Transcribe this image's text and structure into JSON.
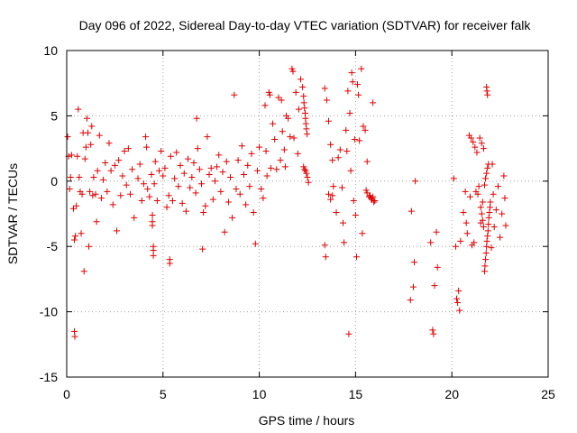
{
  "chart_data": {
    "type": "scatter",
    "title": "Day 096 of 2022, Sidereal Day-to-day VTEC variation (SDTVAR) for receiver falk",
    "xlabel": "GPS time / hours",
    "ylabel": "SDTVAR / TECUs",
    "xlim": [
      0,
      25
    ],
    "ylim": [
      -15,
      10
    ],
    "xticks": [
      0,
      5,
      10,
      15,
      20,
      25
    ],
    "yticks": [
      -15,
      -10,
      -5,
      0,
      5,
      10
    ],
    "grid": true,
    "marker": "plus",
    "color": "#e00000",
    "points": [
      [
        0.05,
        3.4
      ],
      [
        0.1,
        1.9
      ],
      [
        0.15,
        -0.6
      ],
      [
        0.2,
        0.3
      ],
      [
        0.25,
        2.0
      ],
      [
        0.35,
        -2.1
      ],
      [
        0.4,
        -4.5
      ],
      [
        0.45,
        -4.2
      ],
      [
        0.4,
        -11.5
      ],
      [
        0.42,
        -11.9
      ],
      [
        0.5,
        -1.9
      ],
      [
        0.55,
        1.9
      ],
      [
        0.6,
        5.5
      ],
      [
        0.65,
        0.3
      ],
      [
        0.7,
        -0.8
      ],
      [
        0.75,
        -4.0
      ],
      [
        0.8,
        -1.0
      ],
      [
        0.85,
        3.7
      ],
      [
        0.9,
        -6.9
      ],
      [
        0.95,
        1.7
      ],
      [
        1.0,
        2.6
      ],
      [
        1.05,
        4.8
      ],
      [
        1.1,
        3.7
      ],
      [
        1.15,
        -5.0
      ],
      [
        1.2,
        -0.8
      ],
      [
        1.25,
        2.8
      ],
      [
        1.3,
        4.2
      ],
      [
        1.35,
        -1.1
      ],
      [
        1.4,
        0.3
      ],
      [
        1.5,
        -1.0
      ],
      [
        1.55,
        -3.1
      ],
      [
        1.6,
        0.8
      ],
      [
        1.7,
        3.5
      ],
      [
        1.8,
        -1.3
      ],
      [
        1.9,
        0.1
      ],
      [
        2.0,
        1.4
      ],
      [
        2.1,
        -0.8
      ],
      [
        2.2,
        2.9
      ],
      [
        2.3,
        0.8
      ],
      [
        2.4,
        -1.8
      ],
      [
        2.5,
        1.2
      ],
      [
        2.6,
        -3.8
      ],
      [
        2.7,
        1.6
      ],
      [
        2.8,
        -1.1
      ],
      [
        2.9,
        0.4
      ],
      [
        3.0,
        2.3
      ],
      [
        3.1,
        -0.3
      ],
      [
        3.2,
        2.5
      ],
      [
        3.3,
        -1.0
      ],
      [
        3.4,
        0.9
      ],
      [
        3.5,
        -2.8
      ],
      [
        3.7,
        0.2
      ],
      [
        3.8,
        1.3
      ],
      [
        3.9,
        -1.5
      ],
      [
        4.0,
        -0.2
      ],
      [
        4.1,
        3.4
      ],
      [
        4.15,
        2.6
      ],
      [
        4.2,
        -0.6
      ],
      [
        4.3,
        -1.2
      ],
      [
        4.4,
        0.5
      ],
      [
        4.45,
        -2.6
      ],
      [
        4.45,
        -3.1
      ],
      [
        4.45,
        -3.4
      ],
      [
        4.5,
        -5.0
      ],
      [
        4.5,
        -5.3
      ],
      [
        4.5,
        -5.7
      ],
      [
        4.55,
        -0.2
      ],
      [
        4.6,
        1.5
      ],
      [
        4.7,
        -1.5
      ],
      [
        4.8,
        0.8
      ],
      [
        4.9,
        2.3
      ],
      [
        5.0,
        0.4
      ],
      [
        5.1,
        1.0
      ],
      [
        5.2,
        -2.0
      ],
      [
        5.3,
        -1.1
      ],
      [
        5.35,
        -6.0
      ],
      [
        5.35,
        -6.3
      ],
      [
        5.4,
        1.9
      ],
      [
        5.5,
        -1.5
      ],
      [
        5.6,
        0.2
      ],
      [
        5.7,
        2.2
      ],
      [
        5.8,
        -0.4
      ],
      [
        5.9,
        1.2
      ],
      [
        6.0,
        -1.7
      ],
      [
        6.1,
        0.6
      ],
      [
        6.2,
        -2.3
      ],
      [
        6.3,
        1.7
      ],
      [
        6.4,
        -0.5
      ],
      [
        6.5,
        0.3
      ],
      [
        6.6,
        1.4
      ],
      [
        6.7,
        -0.9
      ],
      [
        6.75,
        4.8
      ],
      [
        6.8,
        2.5
      ],
      [
        6.9,
        0.9
      ],
      [
        7.0,
        -0.2
      ],
      [
        7.05,
        -5.2
      ],
      [
        7.1,
        -2.4
      ],
      [
        7.2,
        -1.9
      ],
      [
        7.3,
        3.4
      ],
      [
        7.4,
        0.5
      ],
      [
        7.5,
        1.0
      ],
      [
        7.6,
        -1.4
      ],
      [
        7.7,
        0.0
      ],
      [
        7.8,
        1.1
      ],
      [
        7.9,
        2.0
      ],
      [
        8.0,
        -0.8
      ],
      [
        8.1,
        0.7
      ],
      [
        8.2,
        -3.9
      ],
      [
        8.3,
        1.5
      ],
      [
        8.4,
        -1.6
      ],
      [
        8.5,
        0.3
      ],
      [
        8.6,
        -2.8
      ],
      [
        8.7,
        6.6
      ],
      [
        8.8,
        -0.6
      ],
      [
        8.9,
        1.6
      ],
      [
        9.0,
        -1.0
      ],
      [
        9.1,
        2.7
      ],
      [
        9.2,
        0.5
      ],
      [
        9.3,
        -1.8
      ],
      [
        9.4,
        1.2
      ],
      [
        9.5,
        -0.4
      ],
      [
        9.6,
        2.1
      ],
      [
        9.7,
        -2.4
      ],
      [
        9.8,
        -4.8
      ],
      [
        9.9,
        0.8
      ],
      [
        10.0,
        2.6
      ],
      [
        10.1,
        -0.6
      ],
      [
        10.2,
        -1.3
      ],
      [
        10.3,
        5.8
      ],
      [
        10.35,
        2.3
      ],
      [
        10.4,
        0.4
      ],
      [
        10.5,
        6.8
      ],
      [
        10.55,
        6.6
      ],
      [
        10.6,
        1.0
      ],
      [
        10.7,
        4.4
      ],
      [
        10.8,
        3.2
      ],
      [
        10.9,
        0.9
      ],
      [
        11.0,
        6.4
      ],
      [
        11.1,
        1.6
      ],
      [
        11.15,
        6.2
      ],
      [
        11.2,
        3.8
      ],
      [
        11.3,
        2.4
      ],
      [
        11.35,
        1.1
      ],
      [
        11.4,
        5.0
      ],
      [
        11.5,
        4.8
      ],
      [
        11.6,
        3.4
      ],
      [
        11.7,
        8.6
      ],
      [
        11.75,
        8.4
      ],
      [
        11.8,
        3.3
      ],
      [
        11.9,
        6.8
      ],
      [
        12.0,
        2.1
      ],
      [
        12.05,
        5.5
      ],
      [
        12.15,
        7.8
      ],
      [
        12.25,
        7.2
      ],
      [
        12.3,
        6.5
      ],
      [
        12.32,
        6.0
      ],
      [
        12.35,
        5.6
      ],
      [
        12.38,
        5.2
      ],
      [
        12.4,
        4.8
      ],
      [
        12.42,
        4.4
      ],
      [
        12.45,
        4.0
      ],
      [
        12.48,
        3.6
      ],
      [
        12.3,
        1.1
      ],
      [
        12.35,
        0.9
      ],
      [
        12.4,
        0.8
      ],
      [
        12.45,
        0.6
      ],
      [
        12.5,
        0.3
      ],
      [
        12.55,
        -0.1
      ],
      [
        13.4,
        7.1
      ],
      [
        13.5,
        6.2
      ],
      [
        13.6,
        4.6
      ],
      [
        13.7,
        2.8
      ],
      [
        13.8,
        1.6
      ],
      [
        13.85,
        -0.4
      ],
      [
        13.4,
        -4.9
      ],
      [
        13.45,
        -5.8
      ],
      [
        13.6,
        -1.0
      ],
      [
        13.7,
        -1.4
      ],
      [
        13.8,
        -1.1
      ],
      [
        14.0,
        -2.4
      ],
      [
        14.1,
        1.8
      ],
      [
        14.2,
        2.4
      ],
      [
        14.3,
        -0.5
      ],
      [
        14.35,
        -3.2
      ],
      [
        14.4,
        -4.7
      ],
      [
        14.5,
        3.9
      ],
      [
        14.55,
        2.3
      ],
      [
        14.6,
        6.9
      ],
      [
        14.7,
        5.2
      ],
      [
        14.75,
        0.8
      ],
      [
        14.8,
        8.3
      ],
      [
        14.85,
        7.6
      ],
      [
        14.9,
        -1.5
      ],
      [
        14.95,
        3.2
      ],
      [
        15.0,
        -2.6
      ],
      [
        15.05,
        -5.8
      ],
      [
        15.1,
        7.4
      ],
      [
        15.15,
        6.6
      ],
      [
        15.2,
        3.1
      ],
      [
        15.3,
        8.6
      ],
      [
        15.35,
        -4.0
      ],
      [
        15.4,
        4.2
      ],
      [
        15.5,
        3.9
      ],
      [
        15.6,
        1.5
      ],
      [
        14.65,
        -11.7
      ],
      [
        15.7,
        -1.2
      ],
      [
        15.75,
        -1.1
      ],
      [
        15.8,
        -1.3
      ],
      [
        15.85,
        -1.4
      ],
      [
        15.9,
        -1.2
      ],
      [
        15.95,
        -1.6
      ],
      [
        16.0,
        -1.5
      ],
      [
        15.55,
        -0.7
      ],
      [
        15.6,
        -0.9
      ],
      [
        15.9,
        6.0
      ],
      [
        17.85,
        -9.1
      ],
      [
        17.9,
        -2.3
      ],
      [
        18.1,
        0.0
      ],
      [
        18.05,
        -6.2
      ],
      [
        18.0,
        -8.1
      ],
      [
        18.9,
        -4.7
      ],
      [
        19.0,
        -11.4
      ],
      [
        19.05,
        -11.7
      ],
      [
        19.1,
        -8.0
      ],
      [
        19.2,
        -3.9
      ],
      [
        19.25,
        -6.6
      ],
      [
        20.1,
        0.2
      ],
      [
        20.2,
        -5.0
      ],
      [
        20.25,
        -9.0
      ],
      [
        20.3,
        -9.3
      ],
      [
        20.35,
        -8.4
      ],
      [
        20.4,
        -9.9
      ],
      [
        20.45,
        -4.6
      ],
      [
        20.6,
        -2.4
      ],
      [
        20.7,
        -0.8
      ],
      [
        20.75,
        -3.2
      ],
      [
        20.8,
        -4.0
      ],
      [
        20.9,
        3.5
      ],
      [
        20.95,
        -1.2
      ],
      [
        21.0,
        3.3
      ],
      [
        21.05,
        -4.9
      ],
      [
        21.1,
        3.0
      ],
      [
        21.15,
        -4.7
      ],
      [
        21.2,
        2.6
      ],
      [
        21.25,
        -0.8
      ],
      [
        21.3,
        2.2
      ],
      [
        21.35,
        -1.0
      ],
      [
        21.4,
        -0.4
      ],
      [
        21.45,
        3.3
      ],
      [
        21.5,
        -3.2
      ],
      [
        21.55,
        2.9
      ],
      [
        21.6,
        -1.6
      ],
      [
        21.65,
        2.5
      ],
      [
        21.7,
        -6.9
      ],
      [
        21.72,
        -6.5
      ],
      [
        21.75,
        -6.0
      ],
      [
        21.78,
        -5.5
      ],
      [
        21.8,
        -5.0
      ],
      [
        21.82,
        -4.6
      ],
      [
        21.85,
        -4.2
      ],
      [
        21.88,
        -3.8
      ],
      [
        21.9,
        -3.3
      ],
      [
        21.92,
        -2.8
      ],
      [
        21.95,
        -2.4
      ],
      [
        21.98,
        -2.0
      ],
      [
        22.0,
        -1.6
      ],
      [
        21.5,
        -2.0
      ],
      [
        21.55,
        -2.5
      ],
      [
        21.6,
        -3.0
      ],
      [
        21.65,
        -3.5
      ],
      [
        21.7,
        -0.3
      ],
      [
        21.75,
        0.2
      ],
      [
        21.8,
        0.6
      ],
      [
        21.85,
        1.0
      ],
      [
        21.9,
        1.3
      ],
      [
        21.8,
        7.2
      ],
      [
        21.82,
        6.9
      ],
      [
        21.85,
        6.6
      ],
      [
        22.05,
        -5.1
      ],
      [
        22.1,
        1.3
      ],
      [
        22.15,
        -1.0
      ],
      [
        22.2,
        -3.5
      ],
      [
        22.3,
        -2.2
      ],
      [
        22.4,
        -0.4
      ],
      [
        22.5,
        -4.3
      ],
      [
        22.6,
        -2.5
      ],
      [
        22.7,
        0.4
      ],
      [
        22.75,
        -1.3
      ],
      [
        22.8,
        -3.4
      ]
    ]
  }
}
